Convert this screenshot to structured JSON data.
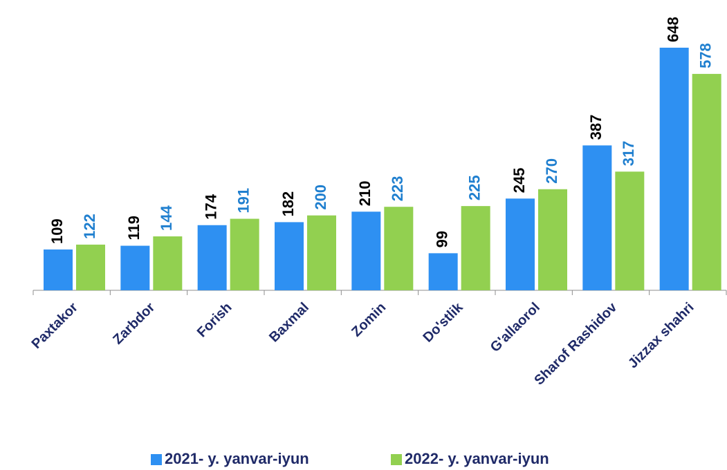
{
  "chart_data": {
    "type": "bar",
    "categories": [
      "Paxtakor",
      "Zarbdor",
      "Forish",
      "Baxmal",
      "Zomin",
      "Do'stlik",
      "G'allaorol",
      "Sharof Rashidov",
      "Jizzax shahri"
    ],
    "series": [
      {
        "name": "2021- y. yanvar-iyun",
        "color": "#2e90f2",
        "label_color": "#000000",
        "values": [
          109,
          119,
          174,
          182,
          210,
          99,
          245,
          387,
          648
        ]
      },
      {
        "name": "2022- y. yanvar-iyun",
        "color": "#92d050",
        "label_color": "#1f7fcf",
        "values": [
          122,
          144,
          191,
          200,
          223,
          225,
          270,
          317,
          578
        ]
      }
    ],
    "legend": "bottom"
  }
}
